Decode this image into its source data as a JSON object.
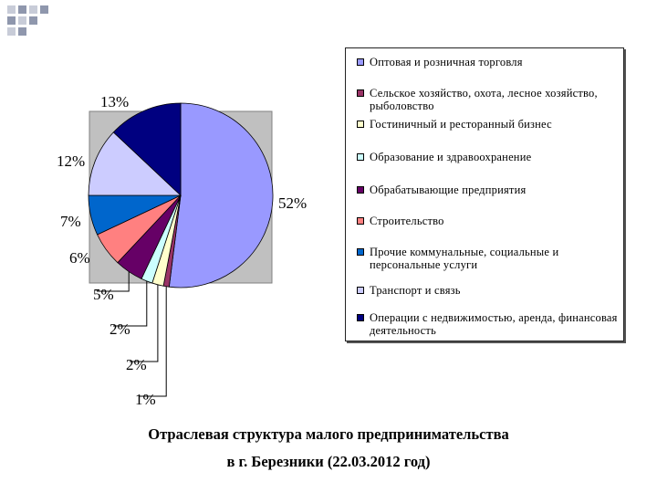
{
  "chart_data": {
    "type": "pie",
    "categories": [
      "Оптовая и розничная торговля",
      "Сельское хозяйство, охота, лесное хозяйство, рыболовство",
      "Гостиничный и ресторанный бизнес",
      "Образование и здравоохранение",
      "Обрабатывающие предприятия",
      "Строительство",
      "Прочие коммунальные, социальные и персональные услуги",
      "Транспорт и связь",
      "Операции с недвижимостью, аренда, финансовая деятельность"
    ],
    "values": [
      52,
      1,
      2,
      2,
      5,
      6,
      7,
      12,
      13
    ],
    "labels": [
      "52%",
      "1%",
      "2%",
      "2%",
      "5%",
      "6%",
      "7%",
      "12%",
      "13%"
    ],
    "colors": [
      "#9999ff",
      "#993366",
      "#ffffcc",
      "#ccffff",
      "#660066",
      "#ff8080",
      "#0066cc",
      "#ccccff",
      "#000080"
    ],
    "legend_position": "right",
    "title": "Отраслевая структура малого предпринимательства",
    "subtitle": "в г. Березники (22.03.2012 год)"
  }
}
